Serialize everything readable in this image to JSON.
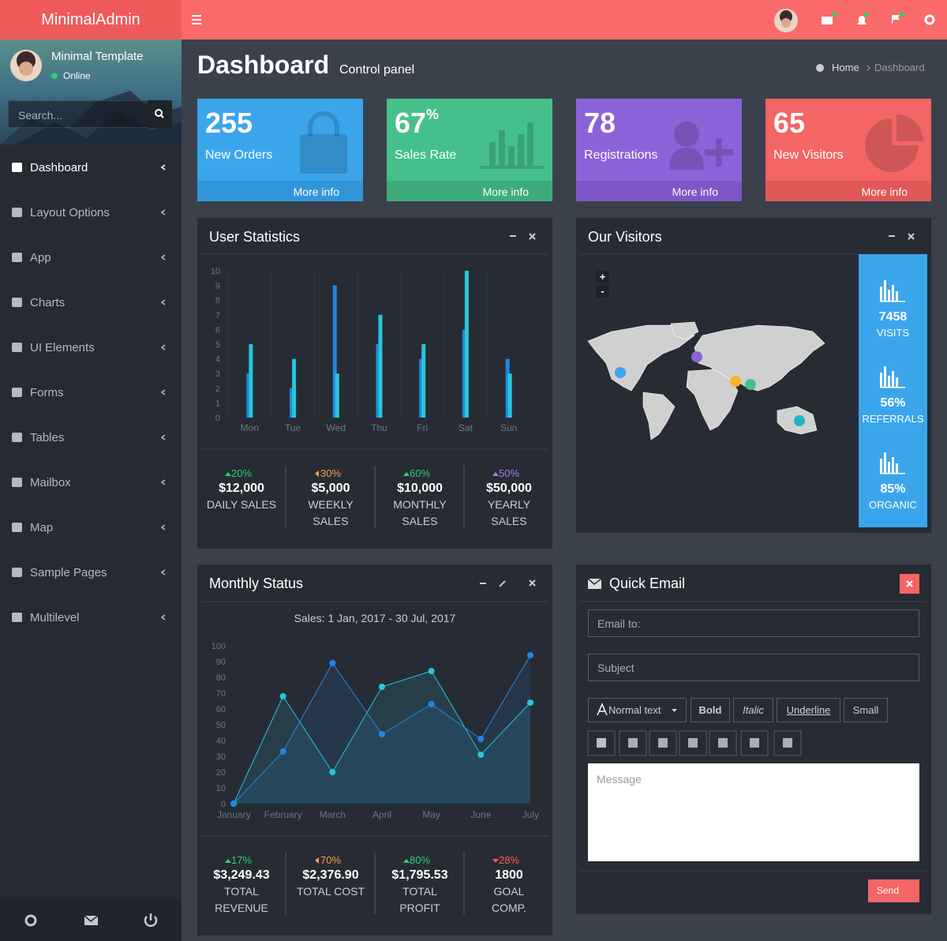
{
  "brand": "MinimalAdmin",
  "user": {
    "name": "Minimal Template",
    "status": "Online"
  },
  "search_placeholder": "Search...",
  "nav": [
    "Dashboard",
    "Layout Options",
    "App",
    "Charts",
    "UI Elements",
    "Forms",
    "Tables",
    "Mailbox",
    "Map",
    "Sample Pages",
    "Multilevel"
  ],
  "header": {
    "title": "Dashboard",
    "subtitle": "Control panel",
    "breadcrumb": [
      "Home",
      "Dashboard"
    ]
  },
  "stat_boxes": [
    {
      "value": "255",
      "label": "New Orders",
      "link": "More info",
      "color": "#3ba5ec",
      "strip": "#3196d9"
    },
    {
      "value": "67",
      "suffix": "%",
      "label": "Sales Rate",
      "link": "More info",
      "color": "#46c08a",
      "strip": "#3dac7b"
    },
    {
      "value": "78",
      "label": "Registrations",
      "link": "More info",
      "color": "#8c62d9",
      "strip": "#7e56c8"
    },
    {
      "value": "65",
      "label": "New Visitors",
      "link": "More info",
      "color": "#f46565",
      "strip": "#e05858"
    }
  ],
  "user_statistics": {
    "title": "User Statistics",
    "summary": [
      {
        "change": "20%",
        "arrow": "up",
        "color": "#2ecc71",
        "value": "$12,000",
        "label": [
          "DAILY SALES"
        ]
      },
      {
        "change": "30%",
        "arrow": "left",
        "color": "#ff9f43",
        "value": "$5,000",
        "label": [
          "WEEKLY",
          "SALES"
        ]
      },
      {
        "change": "60%",
        "arrow": "up",
        "color": "#2ecc71",
        "value": "$10,000",
        "label": [
          "MONTHLY",
          "SALES"
        ]
      },
      {
        "change": "50%",
        "arrow": "up",
        "color": "#a47cf0",
        "value": "$50,000",
        "label": [
          "YEARLY",
          "SALES"
        ]
      }
    ]
  },
  "visitors": {
    "title": "Our Visitors",
    "zoom": [
      "+",
      "-"
    ],
    "stats": [
      {
        "value": "7458",
        "label": "VISITS"
      },
      {
        "value": "56%",
        "label": "REFERRALS"
      },
      {
        "value": "85%",
        "label": "ORGANIC"
      }
    ]
  },
  "monthly_status": {
    "title": "Monthly Status",
    "summary": [
      {
        "change": "17%",
        "arrow": "up",
        "color": "#2ecc71",
        "value": "$3,249.43",
        "label": [
          "TOTAL",
          "REVENUE"
        ]
      },
      {
        "change": "70%",
        "arrow": "left",
        "color": "#ff9f43",
        "value": "$2,376.90",
        "label": [
          "TOTAL COST"
        ]
      },
      {
        "change": "80%",
        "arrow": "up",
        "color": "#2ecc71",
        "value": "$1,795.53",
        "label": [
          "TOTAL",
          "PROFIT"
        ]
      },
      {
        "change": "28%",
        "arrow": "down",
        "color": "#ff5b5b",
        "value": "1800",
        "label": [
          "GOAL",
          "COMP."
        ]
      }
    ]
  },
  "quick_email": {
    "title": "Quick Email",
    "email_placeholder": "Email to:",
    "subject_placeholder": "Subject",
    "toolbar": [
      "Normal text",
      "Bold",
      "Italic",
      "Underline",
      "Small"
    ],
    "message_placeholder": "Message",
    "send": "Send"
  },
  "chart_data": [
    {
      "type": "bar",
      "categories": [
        "Mon",
        "Tue",
        "Wed",
        "Thu",
        "Fri",
        "Sat",
        "Sun"
      ],
      "series": [
        {
          "color": "#1e88e5",
          "values": [
            3,
            2,
            9,
            5,
            4,
            6,
            4
          ]
        },
        {
          "color": "#26c6da",
          "values": [
            5,
            4,
            3,
            7,
            5,
            10,
            3
          ]
        }
      ],
      "ylim": [
        0,
        10
      ],
      "yticks": [
        0,
        1,
        2,
        3,
        4,
        5,
        6,
        7,
        8,
        9,
        10
      ]
    },
    {
      "type": "line",
      "title": "Sales: 1 Jan, 2017 - 30 Jul, 2017",
      "fill": true,
      "categories": [
        "January",
        "February",
        "March",
        "April",
        "May",
        "June",
        "July"
      ],
      "series": [
        {
          "color": "#26c6da",
          "values": [
            0,
            68,
            20,
            74,
            84,
            31,
            64
          ]
        },
        {
          "color": "#1e88e5",
          "values": [
            0,
            33,
            89,
            44,
            63,
            41,
            94
          ]
        }
      ],
      "ylim": [
        0,
        100
      ],
      "yticks": [
        0,
        10,
        20,
        30,
        40,
        50,
        60,
        70,
        80,
        90,
        100
      ]
    }
  ]
}
